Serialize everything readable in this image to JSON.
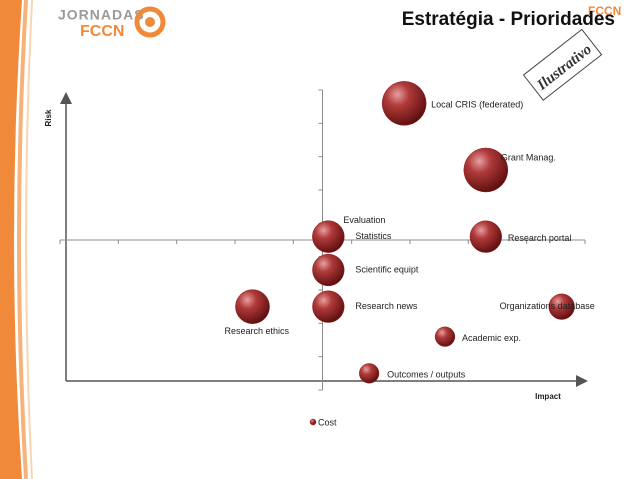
{
  "header": {
    "logo_top": "JORNADAS",
    "logo_bottom": "FCCN",
    "brand": "FCCN"
  },
  "chart_data": {
    "type": "bubble",
    "title": "Estratégia - Prioridades",
    "x_label": "Impact",
    "y_label": "Risk",
    "annotations": [
      "Ilustrativo"
    ],
    "categories": [
      "Local CRIS (federated)",
      "Grant Manag.",
      "Evaluation",
      "Statistics",
      "Research portal",
      "Scientific equipt",
      "Research news",
      "Research ethics",
      "Organizations database",
      "Academic exp.",
      "Outcomes / outputs"
    ],
    "series": [
      {
        "name": "Cost",
        "color": "#8b1e1e",
        "x": [
          1.4,
          2.8,
          0.1,
          0.1,
          2.8,
          0.1,
          0.1,
          -1.2,
          4.1,
          2.1,
          0.8
        ],
        "values": [
          4.1,
          2.1,
          0.1,
          0.1,
          0.1,
          -0.9,
          -2,
          -2,
          -2,
          -2.9,
          -4
        ],
        "sizes": [
          5,
          5,
          2.6,
          2.6,
          2.6,
          2.6,
          2.6,
          3,
          1.7,
          1,
          1
        ]
      }
    ],
    "xlim": [
      -4.5,
      4.5
    ],
    "ylim": [
      -4.5,
      4.5
    ],
    "xticks": [
      -4.5,
      -3.5,
      -2.5,
      -1.5,
      -0.5,
      0.5,
      1.5,
      2.5,
      3.5,
      4.5
    ],
    "yticks": [
      -4.5,
      -3.5,
      -2.5,
      -1.5,
      -0.5,
      0.5,
      1.5,
      2.5,
      3.5,
      4.5
    ]
  }
}
